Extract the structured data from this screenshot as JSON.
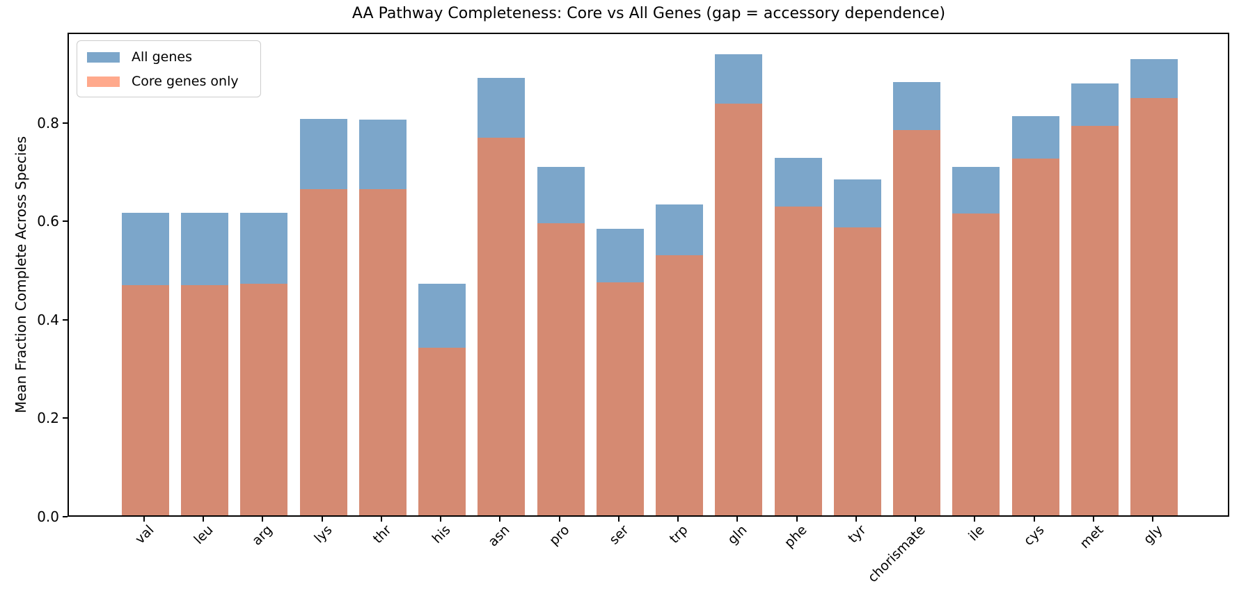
{
  "figure": {
    "title": "AA Pathway Completeness: Core vs All Genes (gap = accessory dependence)",
    "ylabel": "Mean Fraction Complete Across Species"
  },
  "legend": {
    "items": [
      {
        "label": "All genes",
        "color": "#7CA6CA"
      },
      {
        "label": "Core genes only",
        "color": "#FFA98C"
      }
    ]
  },
  "axes": {
    "yticks": [
      {
        "label": "0.0",
        "value": 0.0
      },
      {
        "label": "0.2",
        "value": 0.2
      },
      {
        "label": "0.4",
        "value": 0.4
      },
      {
        "label": "0.6",
        "value": 0.6
      },
      {
        "label": "0.8",
        "value": 0.8
      }
    ]
  },
  "chart_data": {
    "type": "bar",
    "bar_style": "overlaid",
    "title": "AA Pathway Completeness: Core vs All Genes (gap = accessory dependence)",
    "xlabel": "",
    "ylabel": "Mean Fraction Complete Across Species",
    "ylim": [
      0,
      0.983
    ],
    "grid": false,
    "legend_position": "upper left",
    "categories": [
      "val",
      "leu",
      "arg",
      "lys",
      "thr",
      "his",
      "asn",
      "pro",
      "ser",
      "trp",
      "gln",
      "phe",
      "tyr",
      "chorismate",
      "ile",
      "cys",
      "met",
      "gly"
    ],
    "series": [
      {
        "name": "All genes",
        "color": "#7CA6CA",
        "values": [
          0.615,
          0.615,
          0.615,
          0.805,
          0.804,
          0.47,
          0.888,
          0.708,
          0.582,
          0.631,
          0.937,
          0.726,
          0.682,
          0.88,
          0.707,
          0.811,
          0.877,
          0.926
        ]
      },
      {
        "name": "Core genes only",
        "color": "#D58A72",
        "values": [
          0.468,
          0.468,
          0.471,
          0.663,
          0.663,
          0.34,
          0.767,
          0.593,
          0.473,
          0.528,
          0.836,
          0.627,
          0.585,
          0.782,
          0.613,
          0.724,
          0.791,
          0.847
        ]
      }
    ]
  }
}
